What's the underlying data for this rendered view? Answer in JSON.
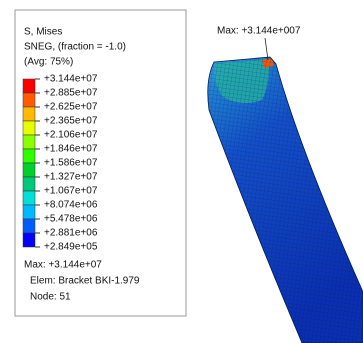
{
  "legend": {
    "title": "S, Mises",
    "lines": [
      "SNEG, (fraction = -1.0)",
      "(Avg: 75%)"
    ],
    "levels": [
      "+3.144e+07",
      "+2.885e+07",
      "+2.625e+07",
      "+2.365e+07",
      "+2.106e+07",
      "+1.846e+07",
      "+1.586e+07",
      "+1.327e+07",
      "+1.067e+07",
      "+8.074e+06",
      "+5.478e+06",
      "+2.881e+06",
      "+2.849e+05"
    ],
    "max": "Max: +3.144e+07",
    "elem": "Elem: Bracket BKI-1.979",
    "node": "Node: 51"
  },
  "annotation": "Max: +3.144e+007"
}
